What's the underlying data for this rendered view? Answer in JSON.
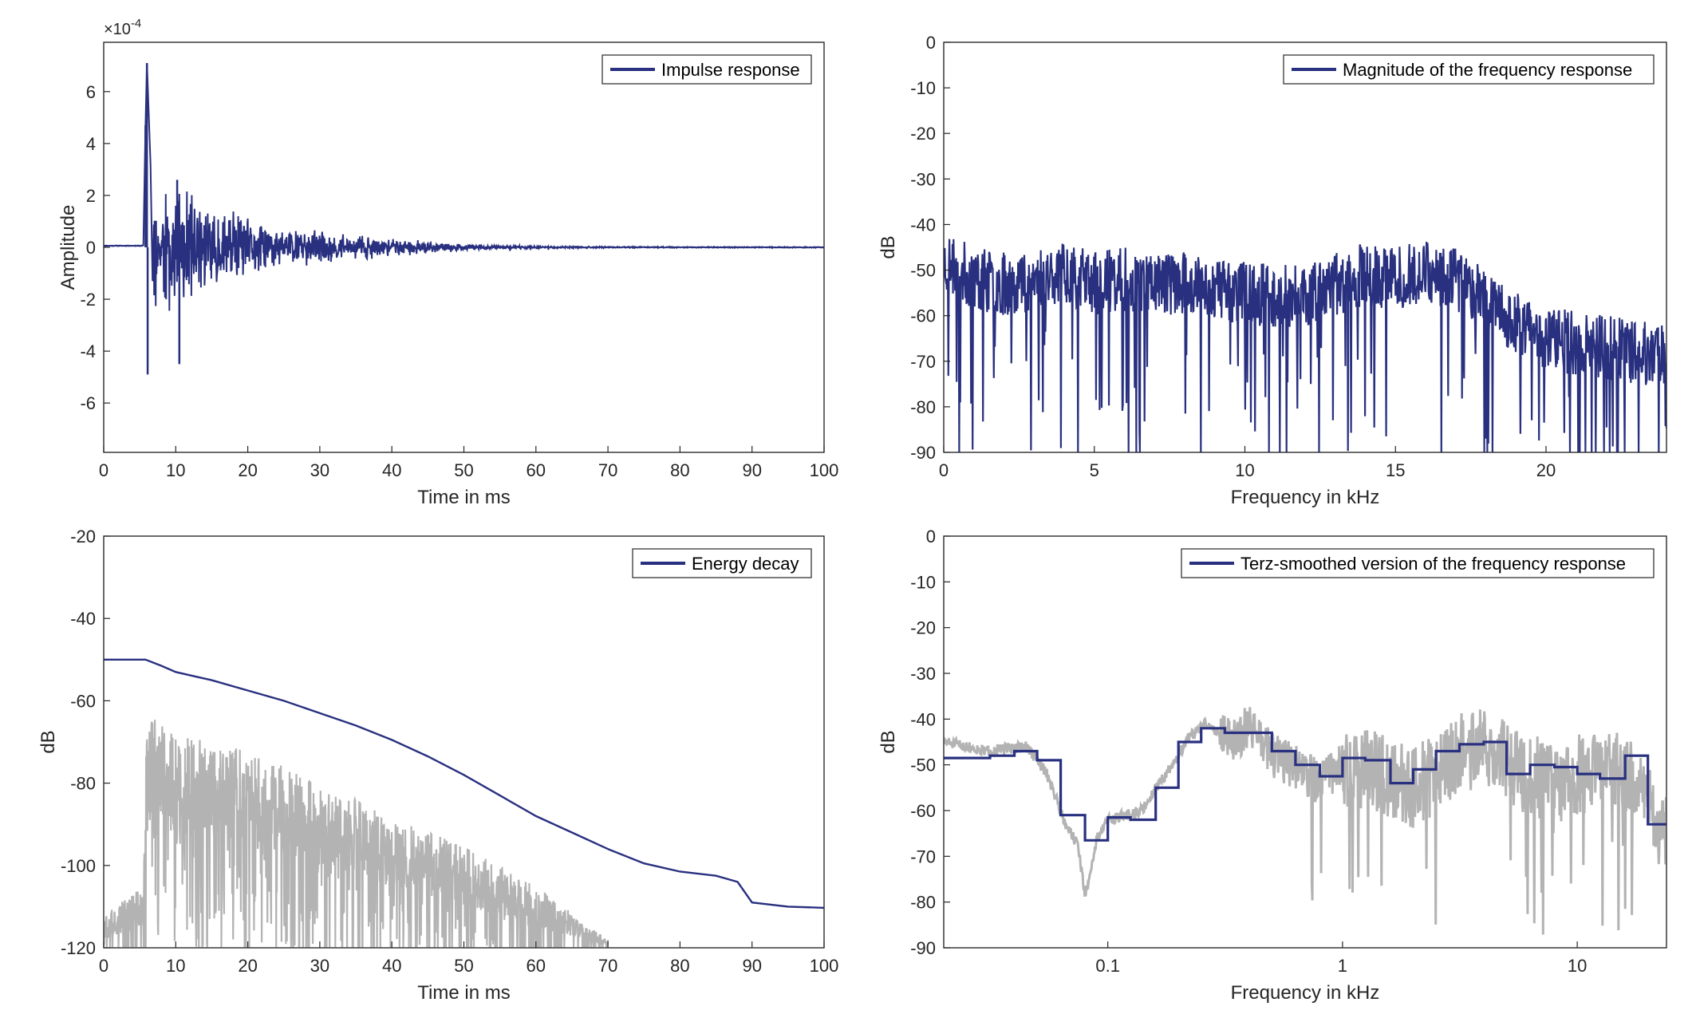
{
  "colors": {
    "primary": "#28307f",
    "secondary": "#b3b3b3",
    "grid": "#dcdcdc",
    "axis": "#262626"
  },
  "chart_data": [
    {
      "id": "impulse",
      "type": "line",
      "xlabel": "Time in ms",
      "ylabel": "Amplitude",
      "exponent_label": "×10",
      "exponent_power": "-4",
      "xlim": [
        0,
        100
      ],
      "ylim": [
        -7.9,
        7.9
      ],
      "x_ticks": [
        0,
        10,
        20,
        30,
        40,
        50,
        60,
        70,
        80,
        90,
        100
      ],
      "y_ticks": [
        -6,
        -4,
        -2,
        0,
        2,
        4,
        6
      ],
      "legend": "Impulse response",
      "legend_position": "top-right",
      "grid": true,
      "series": [
        {
          "name": "Impulse response",
          "color": "#28307f",
          "envelope_x": [
            0,
            5.5,
            5.8,
            6.0,
            6.5,
            7,
            8,
            10,
            12,
            15,
            20,
            25,
            30,
            35,
            40,
            45,
            50,
            55,
            60,
            70,
            80,
            90,
            100
          ],
          "envelope_y": [
            0.05,
            0.08,
            4.7,
            7.1,
            3.2,
            -4.9,
            2.5,
            2.5,
            2.2,
            1.8,
            1.2,
            0.9,
            0.7,
            0.5,
            0.4,
            0.25,
            0.15,
            0.08,
            0.05,
            0.03,
            0.02,
            0.02,
            0.02
          ]
        }
      ]
    },
    {
      "id": "magnitude",
      "type": "line",
      "xlabel": "Frequency in kHz",
      "ylabel": "dB",
      "xlim": [
        0,
        24
      ],
      "ylim": [
        -90,
        0
      ],
      "x_ticks": [
        0,
        5,
        10,
        15,
        20
      ],
      "y_ticks": [
        0,
        -10,
        -20,
        -30,
        -40,
        -50,
        -60,
        -70,
        -80,
        -90
      ],
      "legend": "Magnitude of the frequency response",
      "legend_position": "top-right",
      "grid": true,
      "series": [
        {
          "name": "Magnitude of the frequency response",
          "color": "#28307f",
          "trend_x": [
            0,
            1,
            2,
            3,
            4,
            5,
            6,
            8,
            10,
            12,
            13,
            14,
            15,
            16,
            17,
            18,
            19,
            20,
            22,
            24
          ],
          "trend_y": [
            -48,
            -52,
            -53,
            -52,
            -50,
            -53,
            -52,
            -53,
            -55,
            -56,
            -53,
            -51,
            -52,
            -50,
            -52,
            -56,
            -62,
            -65,
            -67,
            -69
          ]
        }
      ]
    },
    {
      "id": "energy",
      "type": "line",
      "xlabel": "Time in ms",
      "ylabel": "dB",
      "xlim": [
        0,
        100
      ],
      "ylim": [
        -120,
        -20
      ],
      "x_ticks": [
        0,
        10,
        20,
        30,
        40,
        50,
        60,
        70,
        80,
        90,
        100
      ],
      "y_ticks": [
        -20,
        -40,
        -60,
        -80,
        -100,
        -120
      ],
      "legend": "Energy decay",
      "legend_position": "top-right",
      "grid": true,
      "series": [
        {
          "name": "Energy decay",
          "color": "#28307f",
          "x": [
            0,
            5.8,
            8,
            10,
            15,
            20,
            25,
            30,
            35,
            40,
            45,
            50,
            55,
            60,
            65,
            70,
            75,
            80,
            85,
            88,
            90,
            95,
            100
          ],
          "y": [
            -50,
            -50,
            -51.5,
            -53,
            -55,
            -57.5,
            -60,
            -63,
            -66,
            -69.5,
            -73.5,
            -78,
            -83,
            -88,
            -92,
            -96,
            -99.5,
            -101.5,
            -102.5,
            -104,
            -109,
            -110,
            -110.3
          ]
        },
        {
          "color": "#b3b3b3",
          "envelope_x": [
            0,
            5.5,
            6,
            10,
            20,
            30,
            40,
            50,
            60,
            70
          ],
          "envelope_top": [
            -112,
            -105,
            -63,
            -68,
            -72,
            -80,
            -88,
            -95,
            -105,
            -118
          ],
          "envelope_mid": [
            -118,
            -115,
            -90,
            -92,
            -95,
            -100,
            -105,
            -110,
            -115,
            -120
          ]
        }
      ]
    },
    {
      "id": "terz",
      "type": "line",
      "xlabel": "Frequency in kHz",
      "ylabel": "dB",
      "xscale": "log",
      "xlim": [
        0.02,
        24
      ],
      "ylim": [
        -90,
        0
      ],
      "x_ticks": [
        0.1,
        1,
        10
      ],
      "x_tick_labels": [
        "0.1",
        "1",
        "10"
      ],
      "y_ticks": [
        0,
        -10,
        -20,
        -30,
        -40,
        -50,
        -60,
        -70,
        -80,
        -90
      ],
      "legend": "Terz-smoothed version of the frequency response",
      "legend_position": "top-right",
      "grid": true,
      "series": [
        {
          "name": "Terz-smoothed version of the frequency response",
          "color": "#28307f",
          "steps_x": [
            0.02,
            0.025,
            0.0315,
            0.04,
            0.05,
            0.063,
            0.08,
            0.1,
            0.125,
            0.16,
            0.2,
            0.25,
            0.315,
            0.4,
            0.5,
            0.63,
            0.8,
            1.0,
            1.25,
            1.6,
            2.0,
            2.5,
            3.15,
            4.0,
            5.0,
            6.3,
            8.0,
            10.0,
            12.5,
            16.0,
            20.0,
            24.0
          ],
          "steps_y": [
            -48.5,
            -48.5,
            -48,
            -47,
            -49,
            -61,
            -66.5,
            -61.5,
            -62,
            -55,
            -45,
            -42,
            -43,
            -43,
            -47,
            -50,
            -52.5,
            -48.5,
            -49,
            -54,
            -51,
            -47,
            -45.5,
            -45,
            -52,
            -50,
            -50.5,
            -52,
            -53,
            -48,
            -63,
            -63
          ]
        },
        {
          "color": "#b3b3b3",
          "trend_x": [
            0.02,
            0.03,
            0.045,
            0.055,
            0.065,
            0.075,
            0.08,
            0.09,
            0.1,
            0.12,
            0.14,
            0.16,
            0.19,
            0.22,
            0.26,
            0.3,
            0.35,
            0.4,
            0.5,
            0.6,
            0.8,
            1.0,
            1.5,
            2.0,
            3.0,
            4.0,
            6.0,
            8.0,
            10.0,
            14.0,
            18.0,
            24.0
          ],
          "trend_y": [
            -45,
            -47,
            -46,
            -52,
            -62,
            -68,
            -79,
            -66,
            -62,
            -61,
            -60,
            -55,
            -50,
            -44,
            -41,
            -43,
            -45,
            -41,
            -48,
            -50,
            -54,
            -50,
            -52,
            -55,
            -48,
            -46,
            -52,
            -54,
            -52,
            -50,
            -55,
            -66
          ]
        }
      ]
    }
  ]
}
